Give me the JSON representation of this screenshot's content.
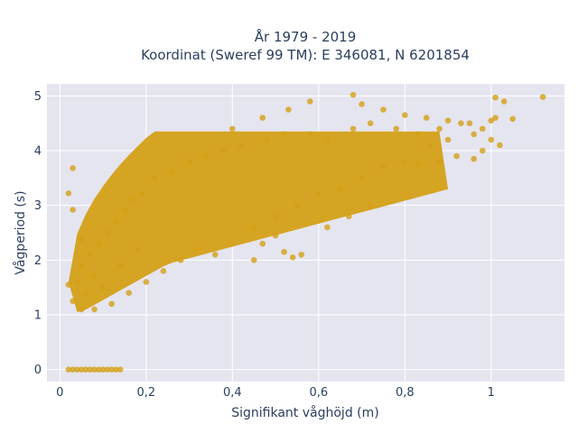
{
  "chart_data": {
    "type": "scatter",
    "title": [
      "År 1979 - 2019",
      "Koordinat (Sweref 99 TM): E 346081, N 6201854"
    ],
    "xlabel": "Signifikant våghöjd (m)",
    "ylabel": "Vågperiod (s)",
    "xlim": [
      -0.03,
      1.17
    ],
    "ylim": [
      -0.22,
      5.22
    ],
    "xticks": [
      0,
      0.2,
      0.4,
      0.6,
      0.8,
      1
    ],
    "xtick_labels": [
      "0",
      "0,2",
      "0,4",
      "0,6",
      "0,8",
      "1"
    ],
    "yticks": [
      0,
      1,
      2,
      3,
      4,
      5
    ],
    "ytick_labels": [
      "0",
      "1",
      "2",
      "3",
      "4",
      "5"
    ],
    "grid": true,
    "legend": "none",
    "colors": {
      "marker": "#d4a017",
      "plot_bg": "#e5e5f0",
      "grid": "#ffffff",
      "text": "#2a3f5f"
    },
    "series": [
      {
        "points": [
          [
            0.02,
            0.0
          ],
          [
            0.03,
            0.0
          ],
          [
            0.04,
            0.0
          ],
          [
            0.05,
            0.0
          ],
          [
            0.06,
            0.0
          ],
          [
            0.07,
            0.0
          ],
          [
            0.08,
            0.0
          ],
          [
            0.09,
            0.0
          ],
          [
            0.1,
            0.0
          ],
          [
            0.11,
            0.0
          ],
          [
            0.12,
            0.0
          ],
          [
            0.13,
            0.0
          ],
          [
            0.14,
            0.0
          ],
          [
            0.02,
            3.22
          ],
          [
            0.03,
            3.68
          ],
          [
            0.03,
            2.92
          ],
          [
            0.05,
            2.38
          ],
          [
            0.02,
            1.55
          ],
          [
            0.03,
            1.25
          ],
          [
            0.04,
            1.6
          ],
          [
            0.05,
            1.1
          ],
          [
            0.05,
            1.9
          ],
          [
            0.06,
            1.4
          ],
          [
            0.07,
            2.1
          ],
          [
            0.08,
            1.1
          ],
          [
            0.08,
            1.7
          ],
          [
            0.09,
            2.3
          ],
          [
            0.1,
            1.5
          ],
          [
            0.11,
            2.5
          ],
          [
            0.12,
            1.2
          ],
          [
            0.13,
            2.7
          ],
          [
            0.14,
            1.9
          ],
          [
            0.15,
            2.9
          ],
          [
            0.16,
            1.4
          ],
          [
            0.17,
            3.1
          ],
          [
            0.18,
            2.2
          ],
          [
            0.19,
            3.2
          ],
          [
            0.2,
            1.6
          ],
          [
            0.22,
            3.5
          ],
          [
            0.24,
            1.8
          ],
          [
            0.26,
            3.6
          ],
          [
            0.28,
            2.0
          ],
          [
            0.3,
            3.8
          ],
          [
            0.32,
            2.2
          ],
          [
            0.34,
            3.9
          ],
          [
            0.36,
            2.1
          ],
          [
            0.38,
            4.0
          ],
          [
            0.4,
            2.3
          ],
          [
            0.42,
            4.1
          ],
          [
            0.45,
            2.6
          ],
          [
            0.48,
            4.2
          ],
          [
            0.5,
            2.8
          ],
          [
            0.52,
            4.3
          ],
          [
            0.55,
            3.0
          ],
          [
            0.58,
            4.3
          ],
          [
            0.6,
            3.2
          ],
          [
            0.62,
            4.2
          ],
          [
            0.65,
            3.3
          ],
          [
            0.68,
            4.4
          ],
          [
            0.7,
            3.5
          ],
          [
            0.72,
            4.5
          ],
          [
            0.75,
            3.7
          ],
          [
            0.78,
            4.4
          ],
          [
            0.8,
            3.8
          ],
          [
            0.83,
            4.3
          ],
          [
            0.86,
            4.1
          ],
          [
            0.88,
            4.4
          ],
          [
            0.9,
            4.2
          ],
          [
            0.93,
            4.5
          ],
          [
            0.96,
            4.3
          ],
          [
            0.98,
            4.4
          ],
          [
            0.68,
            5.02
          ],
          [
            0.58,
            4.9
          ],
          [
            0.53,
            4.75
          ],
          [
            0.47,
            4.6
          ],
          [
            0.4,
            4.4
          ],
          [
            0.7,
            4.85
          ],
          [
            0.75,
            4.75
          ],
          [
            0.8,
            4.65
          ],
          [
            0.85,
            4.6
          ],
          [
            0.9,
            4.55
          ],
          [
            0.95,
            4.5
          ],
          [
            1.01,
            4.97
          ],
          [
            1.03,
            4.9
          ],
          [
            1.0,
            4.55
          ],
          [
            1.01,
            4.6
          ],
          [
            1.05,
            4.58
          ],
          [
            1.12,
            4.98
          ],
          [
            1.0,
            4.2
          ],
          [
            1.02,
            4.1
          ],
          [
            0.98,
            4.0
          ],
          [
            0.96,
            3.85
          ],
          [
            0.88,
            3.8
          ],
          [
            0.83,
            3.75
          ],
          [
            0.92,
            3.9
          ],
          [
            0.56,
            2.1
          ],
          [
            0.54,
            2.05
          ],
          [
            0.52,
            2.15
          ],
          [
            0.45,
            2.0
          ],
          [
            0.62,
            2.6
          ],
          [
            0.67,
            2.8
          ],
          [
            0.72,
            3.0
          ],
          [
            0.5,
            2.45
          ],
          [
            0.47,
            2.3
          ]
        ]
      }
    ]
  }
}
